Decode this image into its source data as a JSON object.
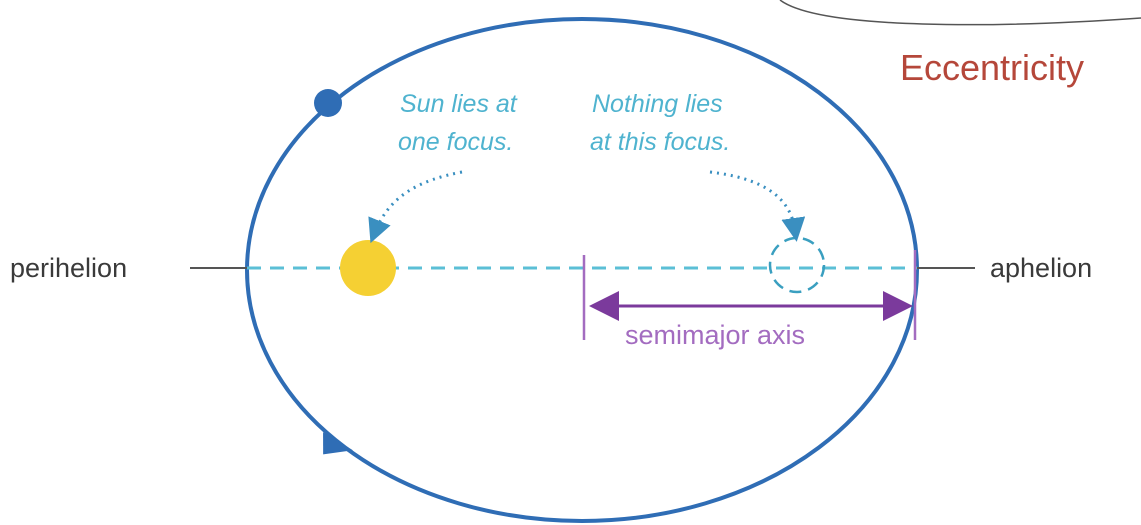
{
  "labels": {
    "perihelion": "perihelion",
    "aphelion": "aphelion",
    "semimajor": "semimajor axis",
    "title": "Eccentricity"
  },
  "annotations": {
    "sun": [
      "Sun lies at",
      "one focus."
    ],
    "empty": [
      "Nothing lies",
      "at this focus."
    ]
  }
}
